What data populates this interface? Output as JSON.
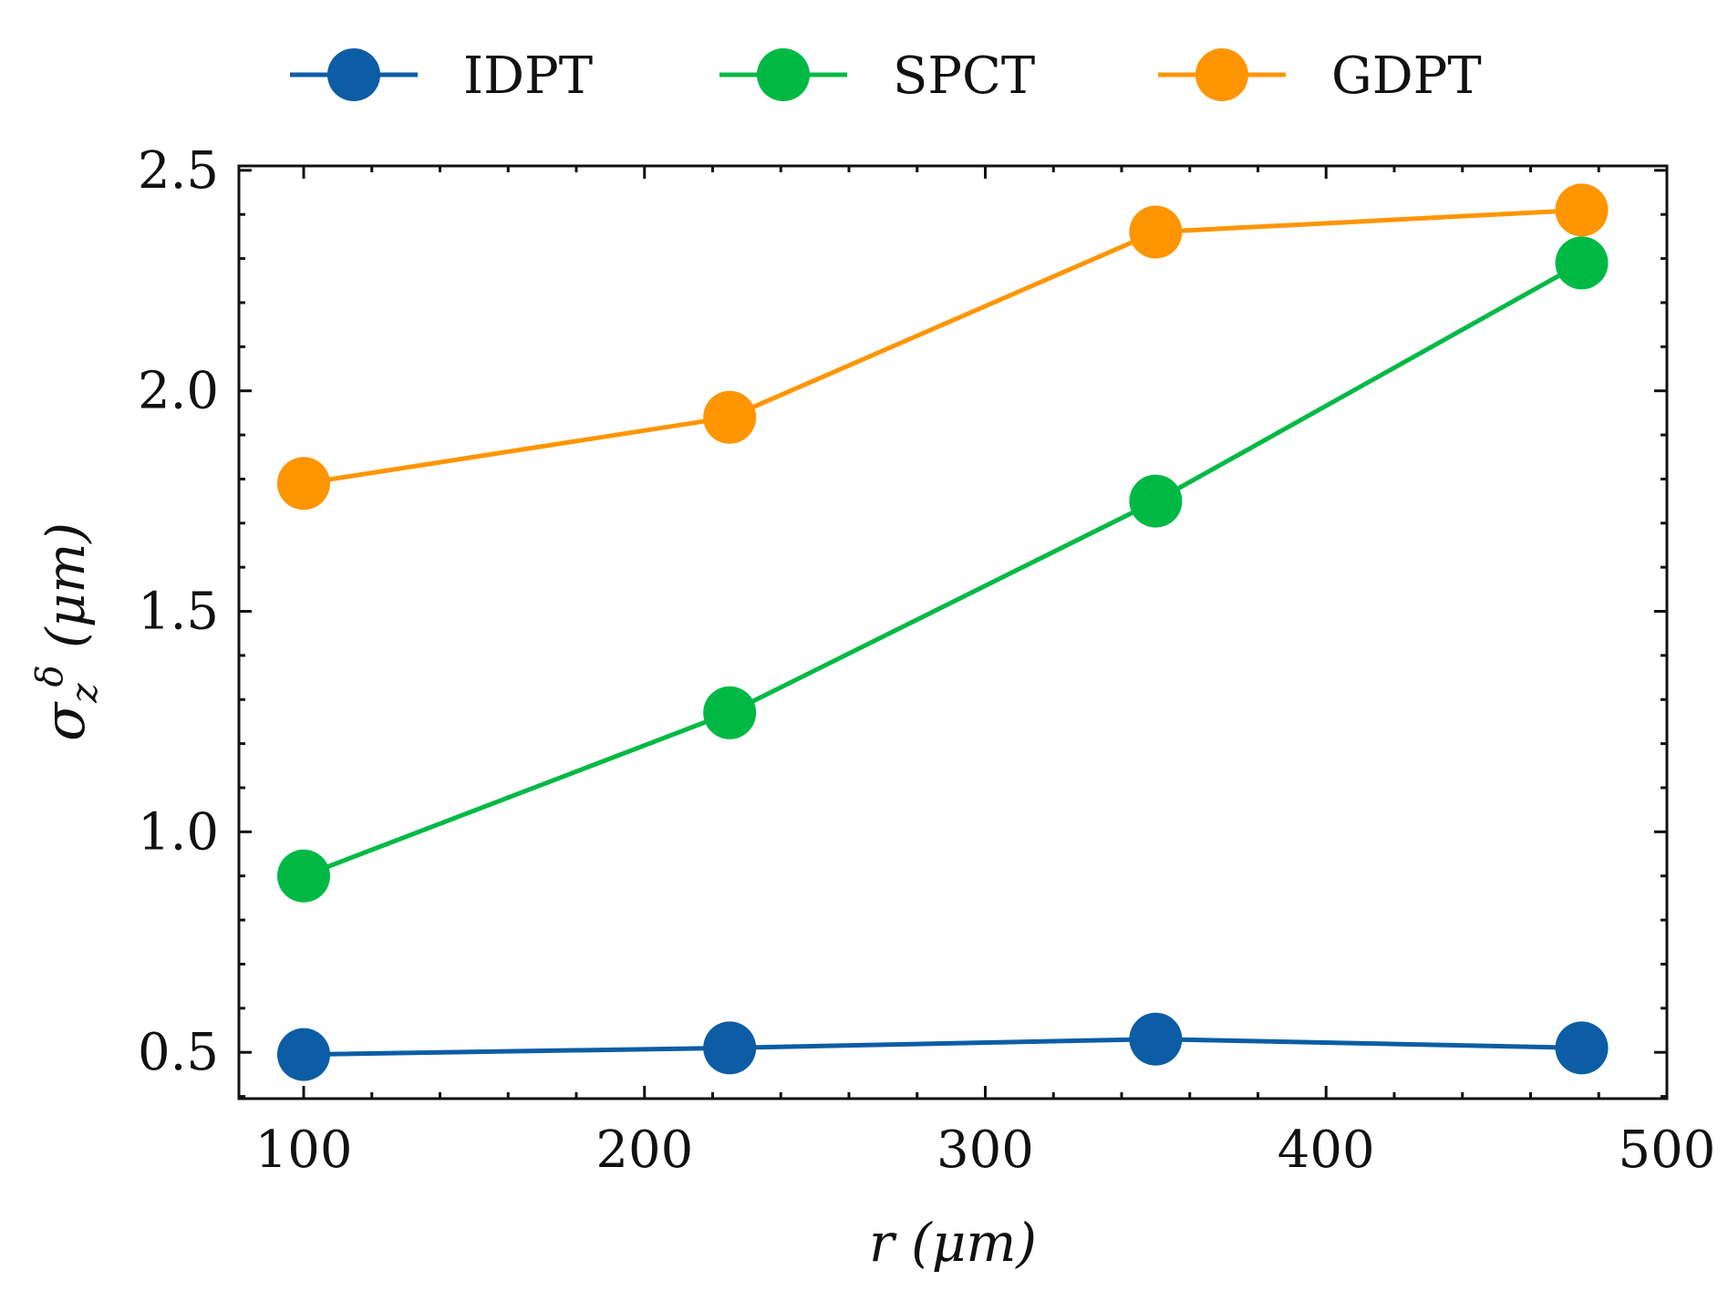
{
  "chart_data": {
    "type": "line",
    "x": [
      100,
      225,
      350,
      475
    ],
    "series": [
      {
        "name": "IDPT",
        "color": "#0c5da5",
        "values": [
          0.495,
          0.51,
          0.53,
          0.51
        ]
      },
      {
        "name": "SPCT",
        "color": "#00b945",
        "values": [
          0.9,
          1.27,
          1.75,
          2.29
        ]
      },
      {
        "name": "GDPT",
        "color": "#ff9500",
        "values": [
          1.79,
          1.94,
          2.36,
          2.41
        ]
      }
    ],
    "xlabel": "r (μm)",
    "ylabel": "σzδ (μm)",
    "ylabel_parts": {
      "base": "σ",
      "sub": "z",
      "sup": "δ",
      "unit": "(μm)"
    },
    "xlim": [
      81,
      500
    ],
    "ylim": [
      0.395,
      2.51
    ],
    "x_ticks": [
      100,
      200,
      300,
      400,
      500
    ],
    "x_tick_labels": [
      "100",
      "200",
      "300",
      "400",
      "500"
    ],
    "y_ticks": [
      0.5,
      1.0,
      1.5,
      2.0,
      2.5
    ],
    "y_tick_labels": [
      "0.5",
      "1.0",
      "1.5",
      "2.0",
      "2.5"
    ],
    "legend_position": "top-center, outside plot",
    "grid": false
  }
}
